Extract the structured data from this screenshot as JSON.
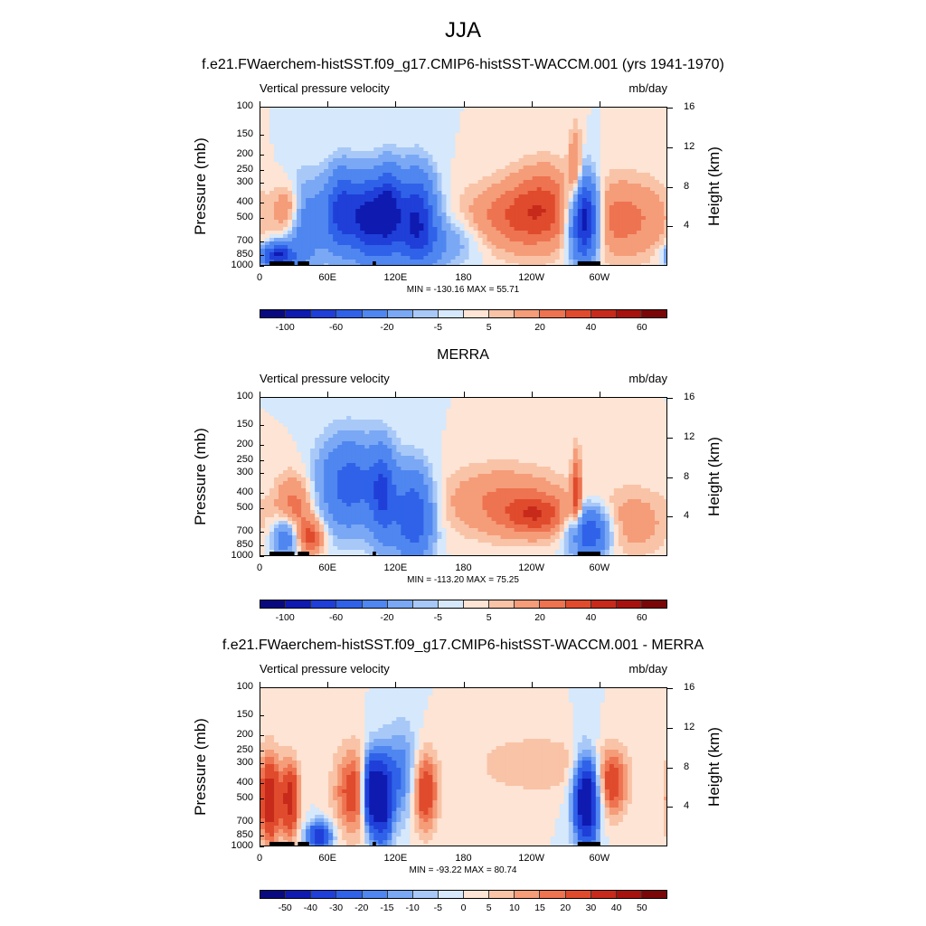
{
  "main_title": "JJA",
  "chart_data": [
    {
      "type": "heatmap",
      "title": "f.e21.FWaerchem-histSST.f09_g17.CMIP6-histSST-WACCM.001 (yrs 1941-1970)",
      "variable": "Vertical pressure velocity",
      "units": "mb/day",
      "ylabel": "Pressure (mb)",
      "ylabel_right": "Height (km)",
      "x_ticks": [
        "0",
        "60E",
        "120E",
        "180",
        "120W",
        "60W"
      ],
      "p_ticks": [
        "100",
        "150",
        "200",
        "250",
        "300",
        "400",
        "500",
        "700",
        "850",
        "1000"
      ],
      "h_ticks": [
        "4",
        "8",
        "12",
        "16"
      ],
      "min": -130.16,
      "max": 55.71,
      "minmax_text": "MIN = -130.16  MAX =  55.71",
      "levels": [
        -100,
        -80,
        -60,
        -40,
        -20,
        -10,
        -5,
        0,
        5,
        10,
        20,
        30,
        40,
        50,
        60,
        80
      ],
      "colorbar_labels": [
        "-100",
        "-60",
        "-20",
        "-5",
        "5",
        "20",
        "40",
        "60"
      ],
      "features": [
        {
          "lon": 25,
          "p": 450,
          "w": 9,
          "h": 0.28,
          "v": 30
        },
        {
          "lon": 15,
          "p": 850,
          "w": 10,
          "h": 0.12,
          "v": -80
        },
        {
          "lon": 38,
          "p": 550,
          "w": 14,
          "h": 0.45,
          "v": -35
        },
        {
          "lon": 72,
          "p": 450,
          "w": 10,
          "h": 0.4,
          "v": -70
        },
        {
          "lon": 95,
          "p": 500,
          "w": 10,
          "h": 0.4,
          "v": -85
        },
        {
          "lon": 113,
          "p": 450,
          "w": 8,
          "h": 0.4,
          "v": -80
        },
        {
          "lon": 137,
          "p": 500,
          "w": 12,
          "h": 0.45,
          "v": -80
        },
        {
          "lon": 160,
          "p": 700,
          "w": 25,
          "h": 0.25,
          "v": -20
        },
        {
          "lon": 220,
          "p": 500,
          "w": 30,
          "h": 0.35,
          "v": 25
        },
        {
          "lon": 250,
          "p": 400,
          "w": 20,
          "h": 0.4,
          "v": 25
        },
        {
          "lon": 285,
          "p": 500,
          "w": 9,
          "h": 0.4,
          "v": -110
        },
        {
          "lon": 278,
          "p": 300,
          "w": 4,
          "h": 0.5,
          "v": 30
        },
        {
          "lon": 318,
          "p": 500,
          "w": 30,
          "h": 0.4,
          "v": 25
        }
      ]
    },
    {
      "type": "heatmap",
      "title": "MERRA",
      "variable": "Vertical pressure velocity",
      "units": "mb/day",
      "ylabel": "Pressure (mb)",
      "ylabel_right": "Height (km)",
      "x_ticks": [
        "0",
        "60E",
        "120E",
        "180",
        "120W",
        "60W"
      ],
      "p_ticks": [
        "100",
        "150",
        "200",
        "250",
        "300",
        "400",
        "500",
        "700",
        "850",
        "1000"
      ],
      "h_ticks": [
        "4",
        "8",
        "12",
        "16"
      ],
      "min": -113.2,
      "max": 75.25,
      "minmax_text": "MIN = -113.20  MAX =  75.25",
      "levels": [
        -100,
        -80,
        -60,
        -40,
        -20,
        -10,
        -5,
        0,
        5,
        10,
        20,
        30,
        40,
        50,
        60,
        80
      ],
      "colorbar_labels": [
        "-100",
        "-60",
        "-20",
        "-5",
        "5",
        "20",
        "40",
        "60"
      ],
      "features": [
        {
          "lon": 30,
          "p": 500,
          "w": 12,
          "h": 0.35,
          "v": 25
        },
        {
          "lon": 45,
          "p": 750,
          "w": 8,
          "h": 0.18,
          "v": 30
        },
        {
          "lon": 22,
          "p": 750,
          "w": 8,
          "h": 0.2,
          "v": -40
        },
        {
          "lon": 78,
          "p": 350,
          "w": 18,
          "h": 0.45,
          "v": -50
        },
        {
          "lon": 108,
          "p": 400,
          "w": 8,
          "h": 0.45,
          "v": -55
        },
        {
          "lon": 135,
          "p": 550,
          "w": 12,
          "h": 0.45,
          "v": -60
        },
        {
          "lon": 215,
          "p": 450,
          "w": 38,
          "h": 0.35,
          "v": 22
        },
        {
          "lon": 245,
          "p": 550,
          "w": 20,
          "h": 0.2,
          "v": 28
        },
        {
          "lon": 279,
          "p": 400,
          "w": 3,
          "h": 0.4,
          "v": 35
        },
        {
          "lon": 290,
          "p": 700,
          "w": 12,
          "h": 0.25,
          "v": -60
        },
        {
          "lon": 330,
          "p": 600,
          "w": 22,
          "h": 0.35,
          "v": 15
        }
      ]
    },
    {
      "type": "heatmap",
      "title": "f.e21.FWaerchem-histSST.f09_g17.CMIP6-histSST-WACCM.001 - MERRA",
      "variable": "Vertical pressure velocity",
      "units": "mb/day",
      "ylabel": "Pressure (mb)",
      "ylabel_right": "Height (km)",
      "x_ticks": [
        "0",
        "60E",
        "120E",
        "180",
        "120W",
        "60W"
      ],
      "p_ticks": [
        "100",
        "150",
        "200",
        "250",
        "300",
        "400",
        "500",
        "700",
        "850",
        "1000"
      ],
      "h_ticks": [
        "4",
        "8",
        "12",
        "16"
      ],
      "min": -93.22,
      "max": 80.74,
      "minmax_text": "MIN = -93.22  MAX =  80.74",
      "levels": [
        -50,
        -40,
        -30,
        -20,
        -15,
        -10,
        -5,
        0,
        5,
        10,
        15,
        20,
        30,
        40,
        50,
        60
      ],
      "colorbar_labels": [
        "-50",
        "-40",
        "-30",
        "-20",
        "-15",
        "-10",
        "-5",
        "0",
        "5",
        "10",
        "15",
        "20",
        "30",
        "40",
        "50"
      ],
      "features": [
        {
          "lon": 8,
          "p": 500,
          "w": 6,
          "h": 0.45,
          "v": 40
        },
        {
          "lon": 26,
          "p": 500,
          "w": 6,
          "h": 0.4,
          "v": 35
        },
        {
          "lon": 52,
          "p": 850,
          "w": 8,
          "h": 0.15,
          "v": -40
        },
        {
          "lon": 82,
          "p": 450,
          "w": 12,
          "h": 0.45,
          "v": 25
        },
        {
          "lon": 97,
          "p": 450,
          "w": 5,
          "h": 0.4,
          "v": -55
        },
        {
          "lon": 108,
          "p": 500,
          "w": 6,
          "h": 0.45,
          "v": -50
        },
        {
          "lon": 125,
          "p": 350,
          "w": 10,
          "h": 0.5,
          "v": -20
        },
        {
          "lon": 145,
          "p": 450,
          "w": 8,
          "h": 0.4,
          "v": 30
        },
        {
          "lon": 245,
          "p": 300,
          "w": 40,
          "h": 0.3,
          "v": 10
        },
        {
          "lon": 288,
          "p": 500,
          "w": 8,
          "h": 0.45,
          "v": -60
        },
        {
          "lon": 310,
          "p": 400,
          "w": 10,
          "h": 0.35,
          "v": 25
        }
      ]
    }
  ]
}
